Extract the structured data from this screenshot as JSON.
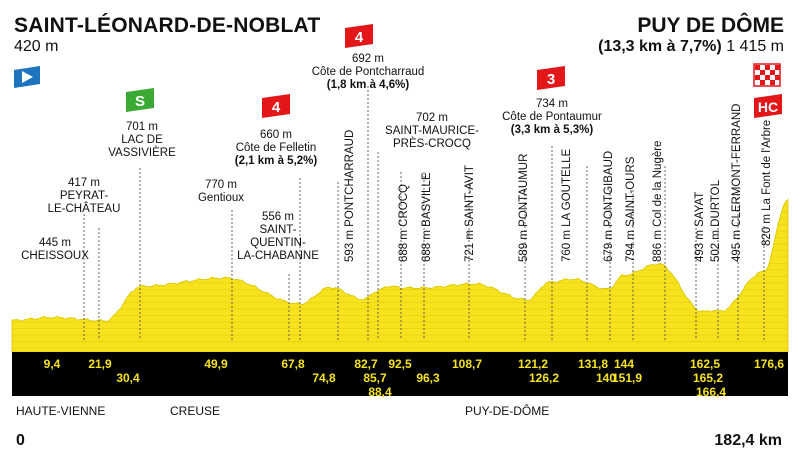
{
  "start": {
    "name": "SAINT-LÉONARD-DE-NOBLAT",
    "altitude": "420 m"
  },
  "finish": {
    "name": "PUY DE DÔME",
    "climb": "(13,3 km à 7,7%)",
    "altitude": "1 415 m"
  },
  "distance_start": "0",
  "distance_total": "182,4 km",
  "colors": {
    "profile": "#f6e21d",
    "band": "#000000",
    "km_text": "#f6e21d",
    "sprint": "#3aaa35",
    "climb": "#e3161a",
    "start": "#1e73be"
  },
  "regions": [
    "HAUTE-VIENNE",
    "CREUSE",
    "PUY-DE-DÔME"
  ],
  "sprint_badge": "S",
  "hc_badge": "HC",
  "climbs": [
    {
      "cat": "4",
      "alt": "692 m",
      "name": "Côte de Pontcharraud",
      "detail": "(1,8 km à 4,6%)"
    },
    {
      "cat": "4",
      "alt": "660 m",
      "name": "Côte de Felletin",
      "detail": "(2,1 km à 5,2%)"
    },
    {
      "cat": "3",
      "alt": "734 m",
      "name": "Côte de Pontaumur",
      "detail": "(3,3 km à 5,3%)"
    }
  ],
  "points_horizontal": [
    {
      "alt": "445 m",
      "lines": [
        "CHEISSOUX"
      ]
    },
    {
      "alt": "417 m",
      "lines": [
        "PEYRAT-",
        "LE-CHÂTEAU"
      ]
    },
    {
      "alt": "701 m",
      "lines": [
        "LAC DE",
        "VASSIVIÈRE"
      ]
    },
    {
      "alt": "770 m",
      "lines": [
        "Gentioux"
      ]
    },
    {
      "alt": "556 m",
      "lines": [
        "SAINT-",
        "QUENTIN-",
        "LA-CHABANNE"
      ]
    },
    {
      "alt": "702 m",
      "lines": [
        "SAINT-MAURICE-",
        "PRÈS-CROCQ"
      ]
    }
  ],
  "points_vertical": [
    "593 m PONTCHARRAUD",
    "688 m CROCQ",
    "688 m BASVILLE",
    "721 m SAINT-AVIT",
    "589 m PONTAUMUR",
    "760 m LA GOUTELLE",
    "679 m PONTGIBAUD",
    "794 m SAINT-OURS",
    "886 m Col de la Nugère",
    "493 m SAYAT",
    "502 m DURTOL",
    "495 m CLERMONT-FERRAND",
    "820 m La Font de l'Arbre"
  ],
  "km_marks": [
    "9,4",
    "21,9",
    "30,4",
    "49,9",
    "67,8",
    "74,8",
    "82,7",
    "85,7",
    "88,4",
    "92,5",
    "96,3",
    "108,7",
    "121,2",
    "126,2",
    "131,8",
    "140",
    "144",
    "151,9",
    "162,5",
    "165,2",
    "166,4",
    "176,6"
  ],
  "chart_data": {
    "type": "area",
    "x_unit": "km",
    "y_unit": "m",
    "x": [
      0,
      9.4,
      21.9,
      30.4,
      49.9,
      67.8,
      74.8,
      82.7,
      85.7,
      88.4,
      92.5,
      96.3,
      108.7,
      121.2,
      126.2,
      131.8,
      140,
      144,
      151.9,
      162.5,
      165.2,
      166.4,
      176.6,
      182.4
    ],
    "y": [
      420,
      445,
      417,
      701,
      770,
      556,
      692,
      593,
      660,
      702,
      688,
      688,
      721,
      589,
      734,
      760,
      679,
      794,
      886,
      493,
      502,
      495,
      820,
      1415
    ],
    "xlim": [
      0,
      182.4
    ]
  }
}
